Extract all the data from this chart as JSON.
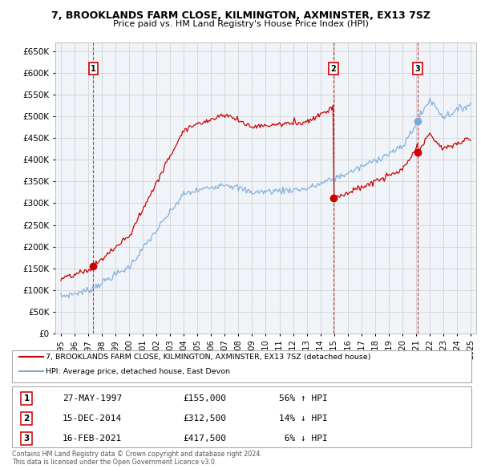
{
  "title": "7, BROOKLANDS FARM CLOSE, KILMINGTON, AXMINSTER, EX13 7SZ",
  "subtitle": "Price paid vs. HM Land Registry's House Price Index (HPI)",
  "sale1_date": "27-MAY-1997",
  "sale1_price": 155000,
  "sale1_hpi_text": "56% ↑ HPI",
  "sale1_year": 1997.38,
  "sale2_date": "15-DEC-2014",
  "sale2_price": 312500,
  "sale2_hpi_text": "14% ↓ HPI",
  "sale2_year": 2014.96,
  "sale3_date": "16-FEB-2021",
  "sale3_price": 417500,
  "sale3_hpi_text": " 6% ↓ HPI",
  "sale3_year": 2021.12,
  "red_line_color": "#cc0000",
  "blue_line_color": "#7aaadd",
  "grid_color": "#cccccc",
  "ylim_min": 0,
  "ylim_max": 670000,
  "xlim_min": 1994.6,
  "xlim_max": 2025.4,
  "footer": "Contains HM Land Registry data © Crown copyright and database right 2024.\nThis data is licensed under the Open Government Licence v3.0.",
  "legend_label1": "7, BROOKLANDS FARM CLOSE, KILMINGTON, AXMINSTER, EX13 7SZ (detached house)",
  "legend_label2": "HPI: Average price, detached house, East Devon",
  "background_color": "#ffffff"
}
